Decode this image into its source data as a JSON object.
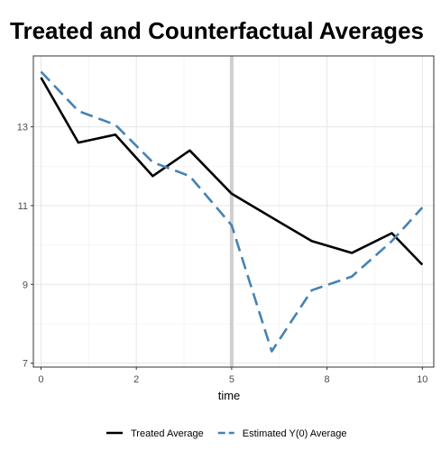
{
  "chart_data": {
    "type": "line",
    "title": "Treated and Counterfactual Averages",
    "xlabel": "time",
    "ylabel": "",
    "x": [
      0,
      0.98,
      1.95,
      2.93,
      3.9,
      5,
      6.05,
      7.1,
      8.15,
      9.2,
      10
    ],
    "xlim": [
      -0.2,
      10.3
    ],
    "ylim": [
      6.9,
      14.8
    ],
    "x_ticks": [
      0,
      2.5,
      5,
      7.5,
      10
    ],
    "x_tick_labels": [
      "0",
      "2",
      "5",
      "8",
      "10"
    ],
    "y_ticks": [
      7,
      9,
      11,
      13
    ],
    "y_tick_labels": [
      "7",
      "9",
      "11",
      "13"
    ],
    "treatment_time": 5,
    "grid": true,
    "legend_position": "bottom",
    "series": [
      {
        "name": "Treated Average",
        "color": "#000000",
        "dash": "solid",
        "values": [
          14.25,
          12.6,
          12.8,
          11.75,
          12.4,
          11.3,
          10.7,
          10.1,
          9.8,
          10.3,
          9.5
        ]
      },
      {
        "name": "Estimated Y(0) Average",
        "color": "#4682B4",
        "dash": "dashed",
        "values": [
          14.4,
          13.4,
          13.05,
          12.1,
          11.75,
          10.5,
          7.3,
          8.85,
          9.2,
          10.1,
          10.95
        ]
      }
    ]
  }
}
